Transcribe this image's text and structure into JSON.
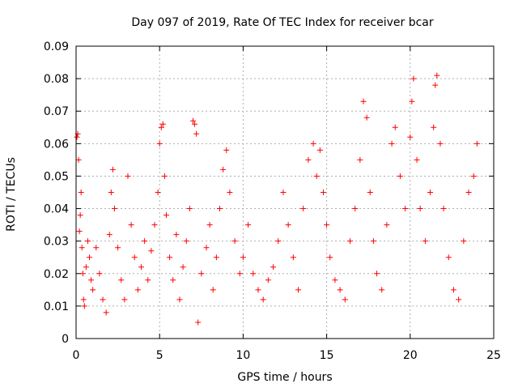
{
  "chart_data": {
    "type": "scatter",
    "title": "Day 097 of 2019, Rate Of TEC Index for receiver bcar",
    "xlabel": "GPS time / hours",
    "ylabel": "ROTI / TECUs",
    "xlim": [
      0,
      25
    ],
    "ylim": [
      0,
      0.09
    ],
    "x_ticks": [
      0,
      5,
      10,
      15,
      20,
      25
    ],
    "x_tick_labels": [
      "0",
      "5",
      "10",
      "15",
      "20",
      "25"
    ],
    "y_ticks": [
      0,
      0.01,
      0.02,
      0.03,
      0.04,
      0.05,
      0.06,
      0.07,
      0.08,
      0.09
    ],
    "y_tick_labels": [
      "0",
      "0.01",
      "0.02",
      "0.03",
      "0.04",
      "0.05",
      "0.06",
      "0.07",
      "0.08",
      "0.09"
    ],
    "grid": true,
    "marker": "plus",
    "color": "#ff0000",
    "series": [
      {
        "name": "ROTI",
        "points": [
          [
            0.05,
            0.062
          ],
          [
            0.1,
            0.063
          ],
          [
            0.15,
            0.055
          ],
          [
            0.2,
            0.033
          ],
          [
            0.25,
            0.038
          ],
          [
            0.3,
            0.045
          ],
          [
            0.35,
            0.028
          ],
          [
            0.4,
            0.02
          ],
          [
            0.45,
            0.012
          ],
          [
            0.5,
            0.01
          ],
          [
            0.6,
            0.022
          ],
          [
            0.7,
            0.03
          ],
          [
            0.8,
            0.025
          ],
          [
            0.9,
            0.018
          ],
          [
            1.0,
            0.015
          ],
          [
            1.2,
            0.028
          ],
          [
            1.4,
            0.02
          ],
          [
            1.6,
            0.012
          ],
          [
            1.8,
            0.008
          ],
          [
            2.0,
            0.032
          ],
          [
            2.1,
            0.045
          ],
          [
            2.2,
            0.052
          ],
          [
            2.3,
            0.04
          ],
          [
            2.5,
            0.028
          ],
          [
            2.7,
            0.018
          ],
          [
            2.9,
            0.012
          ],
          [
            3.1,
            0.05
          ],
          [
            3.3,
            0.035
          ],
          [
            3.5,
            0.025
          ],
          [
            3.7,
            0.015
          ],
          [
            3.9,
            0.022
          ],
          [
            4.1,
            0.03
          ],
          [
            4.3,
            0.018
          ],
          [
            4.5,
            0.027
          ],
          [
            4.7,
            0.035
          ],
          [
            4.9,
            0.045
          ],
          [
            5.0,
            0.06
          ],
          [
            5.1,
            0.065
          ],
          [
            5.2,
            0.066
          ],
          [
            5.3,
            0.05
          ],
          [
            5.4,
            0.038
          ],
          [
            5.6,
            0.025
          ],
          [
            5.8,
            0.018
          ],
          [
            6.0,
            0.032
          ],
          [
            6.2,
            0.012
          ],
          [
            6.4,
            0.022
          ],
          [
            6.6,
            0.03
          ],
          [
            6.8,
            0.04
          ],
          [
            7.0,
            0.067
          ],
          [
            7.1,
            0.066
          ],
          [
            7.2,
            0.063
          ],
          [
            7.3,
            0.005
          ],
          [
            7.5,
            0.02
          ],
          [
            7.8,
            0.028
          ],
          [
            8.0,
            0.035
          ],
          [
            8.2,
            0.015
          ],
          [
            8.4,
            0.025
          ],
          [
            8.6,
            0.04
          ],
          [
            8.8,
            0.052
          ],
          [
            9.0,
            0.058
          ],
          [
            9.2,
            0.045
          ],
          [
            9.5,
            0.03
          ],
          [
            9.8,
            0.02
          ],
          [
            10.0,
            0.025
          ],
          [
            10.3,
            0.035
          ],
          [
            10.6,
            0.02
          ],
          [
            10.9,
            0.015
          ],
          [
            11.2,
            0.012
          ],
          [
            11.5,
            0.018
          ],
          [
            11.8,
            0.022
          ],
          [
            12.1,
            0.03
          ],
          [
            12.4,
            0.045
          ],
          [
            12.7,
            0.035
          ],
          [
            13.0,
            0.025
          ],
          [
            13.3,
            0.015
          ],
          [
            13.6,
            0.04
          ],
          [
            13.9,
            0.055
          ],
          [
            14.2,
            0.06
          ],
          [
            14.4,
            0.05
          ],
          [
            14.6,
            0.058
          ],
          [
            14.8,
            0.045
          ],
          [
            15.0,
            0.035
          ],
          [
            15.2,
            0.025
          ],
          [
            15.5,
            0.018
          ],
          [
            15.8,
            0.015
          ],
          [
            16.1,
            0.012
          ],
          [
            16.4,
            0.03
          ],
          [
            16.7,
            0.04
          ],
          [
            17.0,
            0.055
          ],
          [
            17.2,
            0.073
          ],
          [
            17.4,
            0.068
          ],
          [
            17.6,
            0.045
          ],
          [
            17.8,
            0.03
          ],
          [
            18.0,
            0.02
          ],
          [
            18.3,
            0.015
          ],
          [
            18.6,
            0.035
          ],
          [
            18.9,
            0.06
          ],
          [
            19.1,
            0.065
          ],
          [
            19.4,
            0.05
          ],
          [
            19.7,
            0.04
          ],
          [
            20.0,
            0.062
          ],
          [
            20.1,
            0.073
          ],
          [
            20.2,
            0.08
          ],
          [
            20.4,
            0.055
          ],
          [
            20.6,
            0.04
          ],
          [
            20.9,
            0.03
          ],
          [
            21.2,
            0.045
          ],
          [
            21.4,
            0.065
          ],
          [
            21.5,
            0.078
          ],
          [
            21.6,
            0.081
          ],
          [
            21.8,
            0.06
          ],
          [
            22.0,
            0.04
          ],
          [
            22.3,
            0.025
          ],
          [
            22.6,
            0.015
          ],
          [
            22.9,
            0.012
          ],
          [
            23.2,
            0.03
          ],
          [
            23.5,
            0.045
          ],
          [
            23.8,
            0.05
          ],
          [
            24.0,
            0.06
          ]
        ]
      }
    ]
  }
}
